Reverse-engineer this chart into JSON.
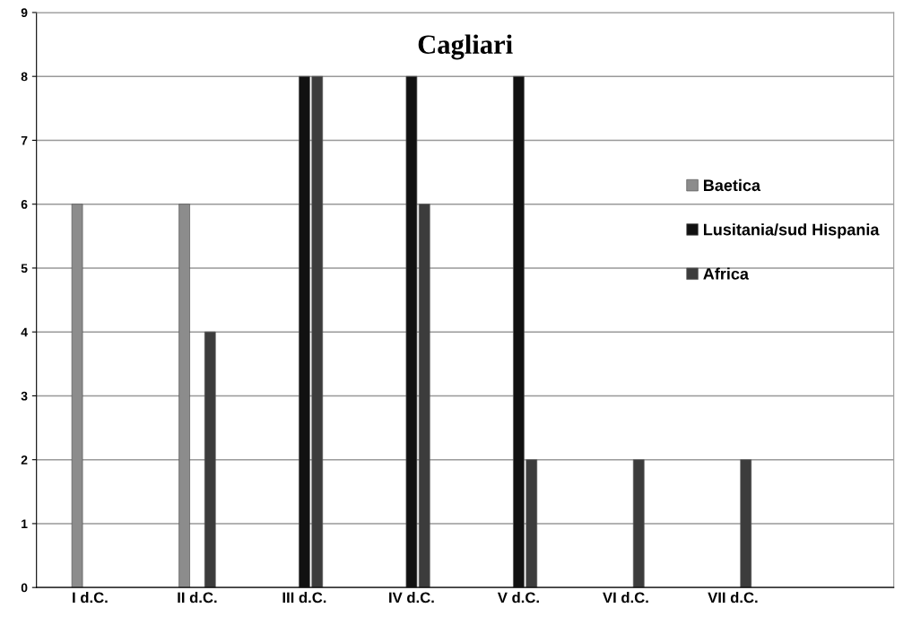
{
  "chart_data": {
    "type": "bar",
    "title": "Cagliari",
    "categories": [
      "I d.C.",
      "II d.C.",
      "III d.C.",
      "IV d.C.",
      "V d.C.",
      "VI d.C.",
      "VII d.C."
    ],
    "series": [
      {
        "name": "Baetica",
        "color": "#8c8c8c",
        "values": [
          6,
          6,
          null,
          null,
          null,
          null,
          null
        ]
      },
      {
        "name": "Lusitania/sud Hispania",
        "color": "#111111",
        "values": [
          null,
          null,
          8,
          8,
          8,
          null,
          null
        ]
      },
      {
        "name": "Africa",
        "color": "#3c3c3c",
        "values": [
          null,
          4,
          8,
          6,
          2,
          2,
          2
        ]
      }
    ],
    "ylim": [
      0,
      9
    ],
    "yticks": [
      0,
      1,
      2,
      3,
      4,
      5,
      6,
      7,
      8,
      9
    ],
    "grid": "y",
    "legend": "right"
  }
}
